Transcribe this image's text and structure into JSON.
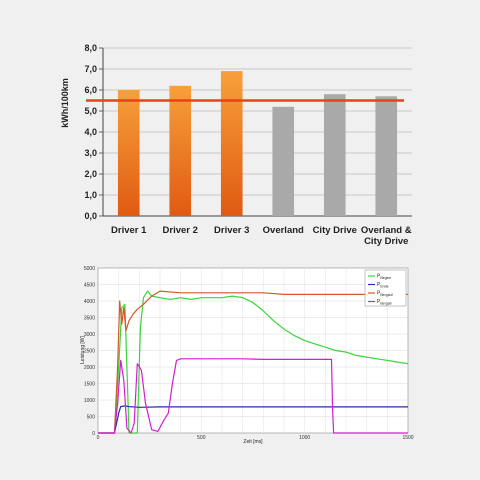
{
  "colors": {
    "background": "#f0f0f0",
    "driver_bar_top": "#f7a03a",
    "driver_bar_bottom": "#e05a12",
    "other_bar": "#a9a9a9",
    "reference_line": "#e8411c",
    "series_green": "#3bd43b",
    "series_blue": "#2a2aa8",
    "series_orange": "#d2592a",
    "series_magenta": "#d21ed2"
  },
  "chart_data": [
    {
      "type": "bar",
      "ylabel": "kWh/100km",
      "ylim": [
        0,
        8
      ],
      "yticks": [
        "0,0",
        "1,0",
        "2,0",
        "3,0",
        "4,0",
        "5,0",
        "6,0",
        "7,0",
        "8,0"
      ],
      "categories": [
        "Driver 1",
        "Driver 2",
        "Driver 3",
        "Overland",
        "City Drive",
        "Overland & City Drive"
      ],
      "category_lines": [
        [
          "Driver 1"
        ],
        [
          "Driver 2"
        ],
        [
          "Driver 3"
        ],
        [
          "Overland"
        ],
        [
          "City Drive"
        ],
        [
          "Overland &",
          "City Drive"
        ]
      ],
      "values": [
        6.0,
        6.2,
        6.9,
        5.2,
        5.8,
        5.7
      ],
      "reference_line": 5.5,
      "grid": true
    },
    {
      "type": "line",
      "xlabel": "Zeit [ms]",
      "ylabel": "Leistung [W]",
      "xlim": [
        0,
        1500
      ],
      "ylim": [
        0,
        5000
      ],
      "xticks": [
        "0",
        "500",
        "1000",
        "1500"
      ],
      "yticks": [
        "0",
        "500",
        "1000",
        "1500",
        "2000",
        "2500",
        "3000",
        "3500",
        "4000",
        "4500",
        "5000"
      ],
      "grid": true,
      "legend_position": "top-right",
      "series": [
        {
          "name": "P",
          "sub": "Beginn",
          "color": "#3bd43b",
          "x": [
            0,
            80,
            100,
            115,
            130,
            150,
            170,
            190,
            205,
            220,
            240,
            260,
            300,
            350,
            400,
            450,
            500,
            550,
            600,
            650,
            700,
            750,
            800,
            850,
            900,
            950,
            1000,
            1050,
            1100,
            1150,
            1200,
            1250,
            1300,
            1350,
            1400,
            1450,
            1500
          ],
          "y": [
            0,
            0,
            2000,
            3800,
            3900,
            0,
            0,
            0,
            3200,
            4100,
            4300,
            4150,
            4100,
            4050,
            4100,
            4050,
            4100,
            4100,
            4100,
            4150,
            4100,
            3950,
            3700,
            3400,
            3150,
            2950,
            2800,
            2700,
            2600,
            2500,
            2450,
            2350,
            2300,
            2250,
            2200,
            2150,
            2100
          ]
        },
        {
          "name": "P",
          "sub": "Ende",
          "color": "#2a2aa8",
          "x": [
            0,
            80,
            100,
            110,
            130,
            150,
            200,
            300,
            400,
            500,
            600,
            700,
            800,
            900,
            1000,
            1100,
            1200,
            1300,
            1400,
            1500
          ],
          "y": [
            0,
            0,
            600,
            800,
            820,
            800,
            780,
            790,
            790,
            790,
            790,
            790,
            790,
            790,
            790,
            790,
            790,
            790,
            790,
            790
          ]
        },
        {
          "name": "P",
          "sub": "Bergauf",
          "color": "#d2592a",
          "x": [
            0,
            80,
            95,
            105,
            115,
            125,
            135,
            150,
            170,
            190,
            220,
            260,
            300,
            400,
            500,
            600,
            700,
            800,
            900,
            1000,
            1100,
            1200,
            1300,
            1400,
            1500
          ],
          "y": [
            0,
            0,
            2000,
            4000,
            3300,
            3800,
            3100,
            3400,
            3600,
            3750,
            3900,
            4150,
            4300,
            4250,
            4250,
            4250,
            4250,
            4250,
            4200,
            4200,
            4200,
            4200,
            4200,
            4200,
            4200
          ]
        },
        {
          "name": "P",
          "sub": "Bergab",
          "color": "#d21ed2",
          "x": [
            0,
            80,
            95,
            110,
            125,
            140,
            160,
            175,
            190,
            210,
            230,
            260,
            290,
            320,
            340,
            360,
            380,
            400,
            500,
            600,
            700,
            800,
            900,
            1000,
            1100,
            1130,
            1135,
            1140,
            1200,
            1300,
            1400,
            1500
          ],
          "y": [
            0,
            0,
            900,
            2200,
            1600,
            150,
            0,
            300,
            2100,
            1900,
            900,
            100,
            50,
            400,
            600,
            1500,
            2200,
            2250,
            2250,
            2250,
            2250,
            2230,
            2230,
            2230,
            2230,
            2230,
            700,
            0,
            0,
            0,
            0,
            0
          ]
        }
      ]
    }
  ]
}
